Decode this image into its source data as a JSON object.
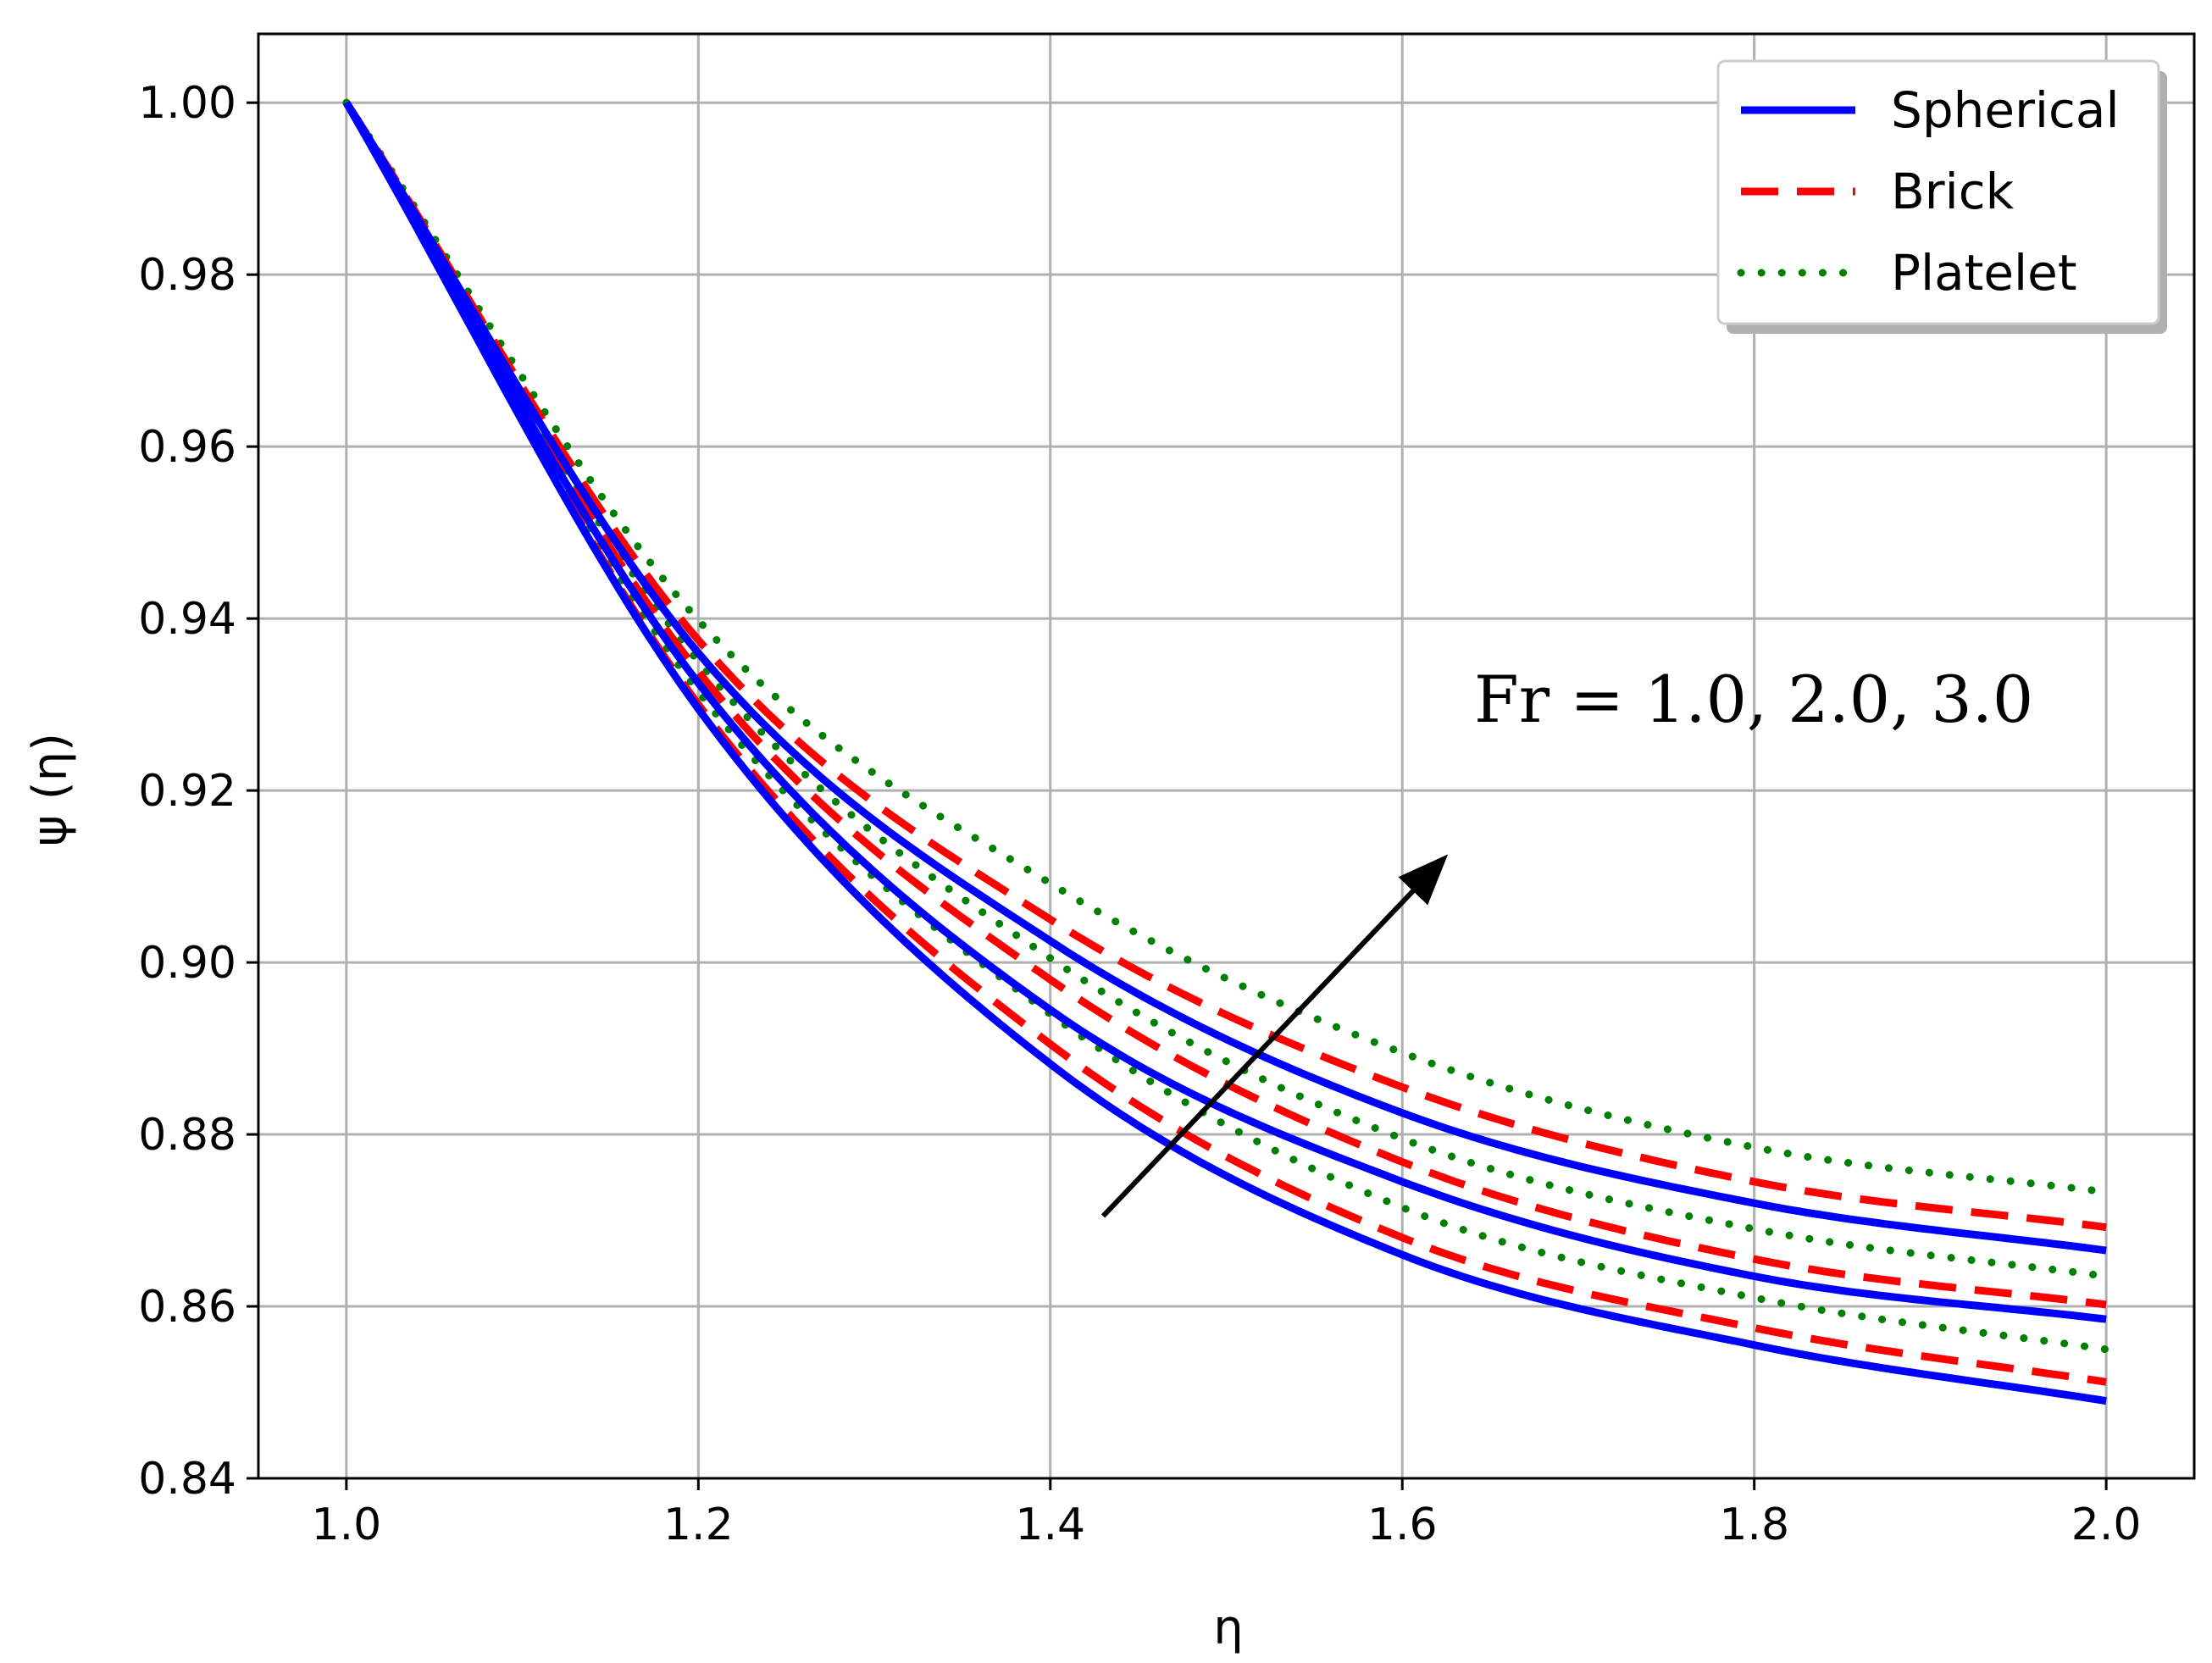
{
  "chart_data": {
    "type": "line",
    "xlabel": "η",
    "ylabel": "ψ (η)",
    "xlim": [
      0.95,
      2.05
    ],
    "ylim": [
      0.84,
      1.008
    ],
    "xticks": [
      "1.0",
      "1.2",
      "1.4",
      "1.6",
      "1.8",
      "2.0"
    ],
    "yticks": [
      "0.84",
      "0.86",
      "0.88",
      "0.90",
      "0.92",
      "0.94",
      "0.96",
      "0.98",
      "1.00"
    ],
    "grid": true,
    "legend_position": "top-right",
    "annotation": "Fr = 1.0, 2.0, 3.0",
    "arrow": {
      "from": [
        1.43,
        0.8705
      ],
      "to": [
        1.62,
        0.9113
      ]
    },
    "series": [
      {
        "name": "Spherical",
        "color": "#0000ff",
        "style": "solid",
        "curves": [
          {
            "Fr": "1.0",
            "x": [
              1.0,
              1.2,
              1.4,
              1.6,
              1.8,
              2.0
            ],
            "y": [
              1.0,
              0.9295,
              0.8882,
              0.866,
              0.8555,
              0.849
            ]
          },
          {
            "Fr": "2.0",
            "x": [
              1.0,
              1.2,
              1.4,
              1.6,
              1.8,
              2.0
            ],
            "y": [
              1.0,
              0.9325,
              0.8945,
              0.8745,
              0.8635,
              0.8585
            ]
          },
          {
            "Fr": "3.0",
            "x": [
              1.0,
              1.2,
              1.4,
              1.6,
              1.8,
              2.0
            ],
            "y": [
              1.0,
              0.936,
              0.9025,
              0.8825,
              0.872,
              0.8665
            ]
          }
        ]
      },
      {
        "name": "Brick",
        "color": "#ff0000",
        "style": "dashed",
        "curves": [
          {
            "Fr": "1.0",
            "x": [
              1.0,
              1.2,
              1.4,
              1.6,
              1.8,
              2.0
            ],
            "y": [
              1.0,
              0.93,
              0.8905,
              0.868,
              0.8575,
              0.8512
            ]
          },
          {
            "Fr": "2.0",
            "x": [
              1.0,
              1.2,
              1.4,
              1.6,
              1.8,
              2.0
            ],
            "y": [
              1.0,
              0.9338,
              0.898,
              0.8768,
              0.8655,
              0.8602
            ]
          },
          {
            "Fr": "3.0",
            "x": [
              1.0,
              1.2,
              1.4,
              1.6,
              1.8,
              2.0
            ],
            "y": [
              1.0,
              0.9375,
              0.905,
              0.8855,
              0.8745,
              0.8692
            ]
          }
        ]
      },
      {
        "name": "Platelet",
        "color": "#008000",
        "style": "dotted",
        "curves": [
          {
            "Fr": "1.0",
            "x": [
              1.0,
              1.2,
              1.4,
              1.6,
              1.8,
              2.0
            ],
            "y": [
              1.0,
              0.9315,
              0.894,
              0.8715,
              0.861,
              0.855
            ]
          },
          {
            "Fr": "2.0",
            "x": [
              1.0,
              1.2,
              1.4,
              1.6,
              1.8,
              2.0
            ],
            "y": [
              1.0,
              0.935,
              0.9005,
              0.8795,
              0.869,
              0.8635
            ]
          },
          {
            "Fr": "3.0",
            "x": [
              1.0,
              1.2,
              1.4,
              1.6,
              1.8,
              2.0
            ],
            "y": [
              1.0,
              0.9398,
              0.9092,
              0.8895,
              0.8785,
              0.8733
            ]
          }
        ]
      }
    ]
  }
}
